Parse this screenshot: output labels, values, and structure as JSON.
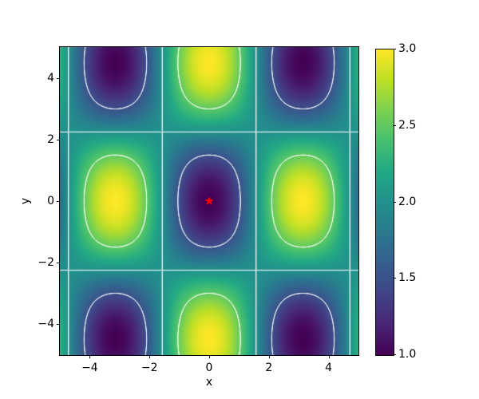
{
  "figure": {
    "background": "#ffffff"
  },
  "chart_data": {
    "type": "heatmap",
    "title": "",
    "xlabel": "x",
    "ylabel": "y",
    "xlim": [
      -5,
      5
    ],
    "ylim": [
      -5,
      5
    ],
    "grid": false,
    "x_ticks": {
      "values": [
        -4,
        -2,
        0,
        2,
        4
      ],
      "labels": [
        "−4",
        "−2",
        "0",
        "2",
        "4"
      ]
    },
    "y_ticks": {
      "values": [
        -4,
        -2,
        0,
        2,
        4
      ],
      "labels": [
        "−4",
        "−2",
        "0",
        "2",
        "4"
      ]
    },
    "z_function": {
      "form": "z = offset + amp * cos(kx*x) * cos(ky*y)",
      "offset": 2,
      "amp": -1,
      "kx": 1,
      "ky": 0.7
    },
    "z_range": [
      1.0,
      3.0
    ],
    "contours": {
      "levels": [
        1.5,
        2.0,
        2.5
      ],
      "color": "#ffffff",
      "alpha": 0.9,
      "linewidth": 1.5
    },
    "marker": {
      "x": 0,
      "y": 0,
      "shape": "star",
      "color": "#ff0000",
      "size": 12
    },
    "colormap": {
      "name": "viridis",
      "stops": [
        [
          0.0,
          "#440154"
        ],
        [
          0.1,
          "#482475"
        ],
        [
          0.2,
          "#414487"
        ],
        [
          0.3,
          "#355f8d"
        ],
        [
          0.4,
          "#2a788e"
        ],
        [
          0.5,
          "#21918c"
        ],
        [
          0.6,
          "#22a884"
        ],
        [
          0.7,
          "#44bf70"
        ],
        [
          0.8,
          "#7ad151"
        ],
        [
          0.9,
          "#bddf26"
        ],
        [
          1.0,
          "#fde725"
        ]
      ]
    },
    "colorbar": {
      "position": "right",
      "ticks": {
        "values": [
          1.0,
          1.5,
          2.0,
          2.5,
          3.0
        ],
        "labels": [
          "1.0",
          "1.5",
          "2.0",
          "2.5",
          "3.0"
        ]
      }
    }
  }
}
